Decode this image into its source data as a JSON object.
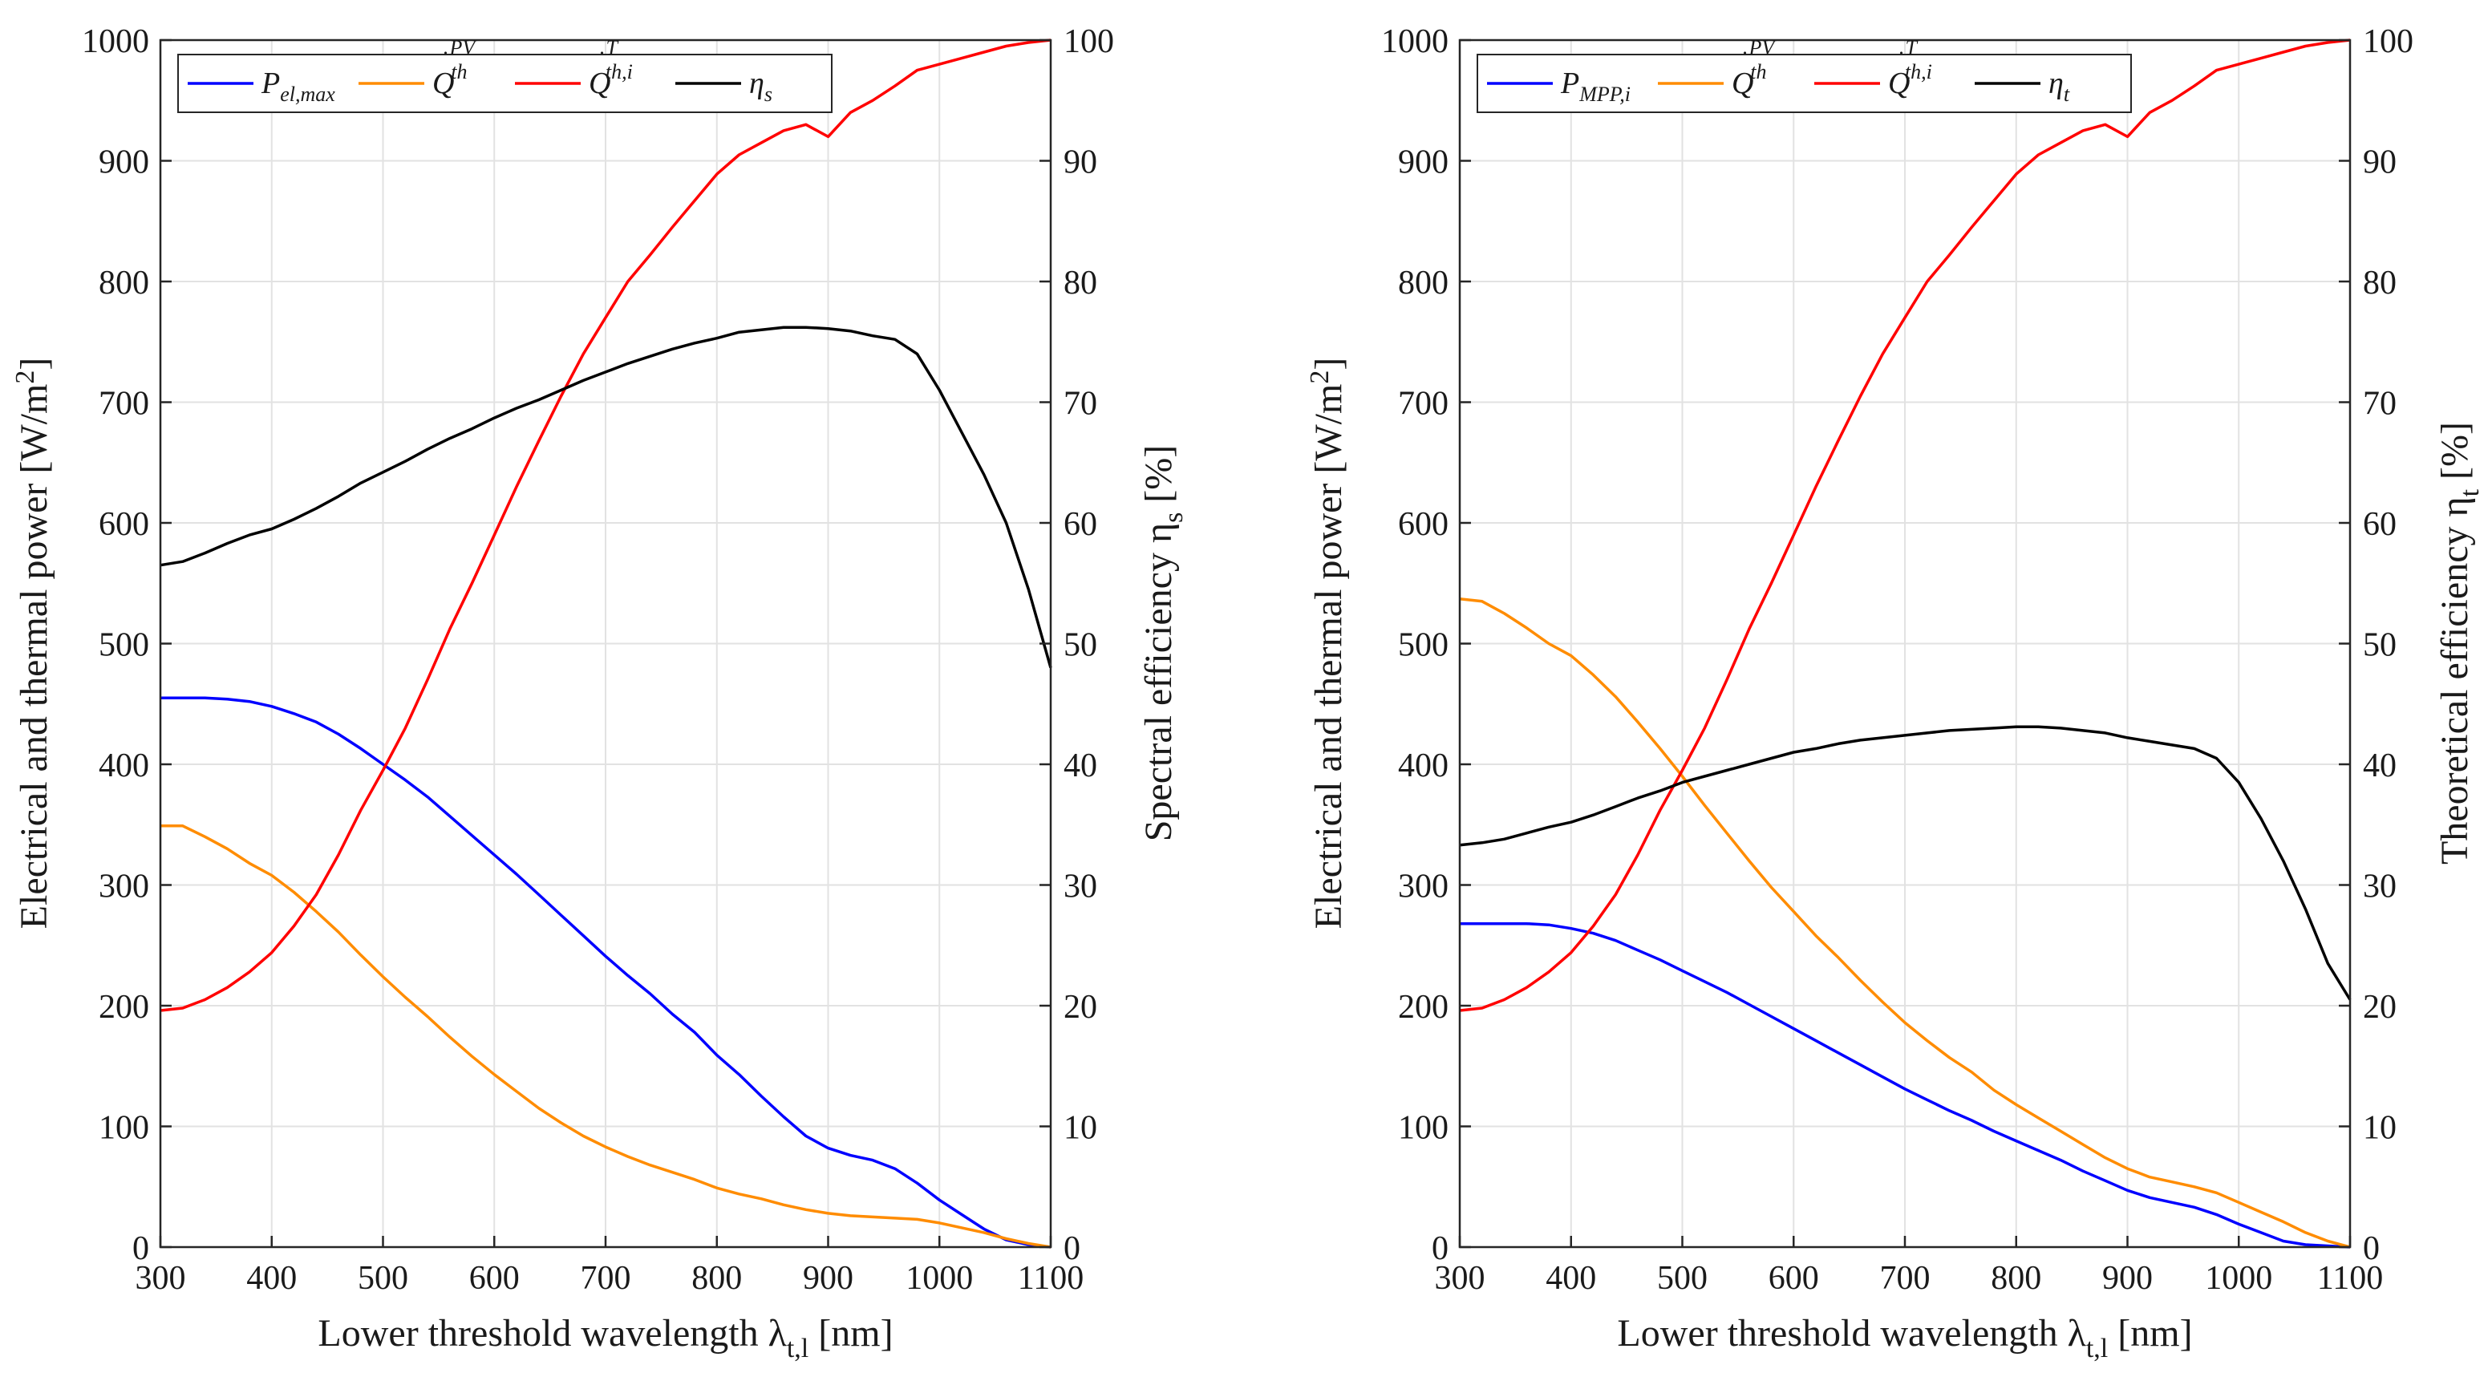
{
  "chart_data": [
    {
      "type": "line",
      "x": [
        300,
        320,
        340,
        360,
        380,
        400,
        420,
        440,
        460,
        480,
        500,
        520,
        540,
        560,
        580,
        600,
        620,
        640,
        660,
        680,
        700,
        720,
        740,
        760,
        780,
        800,
        820,
        840,
        860,
        880,
        900,
        920,
        940,
        960,
        980,
        1000,
        1020,
        1040,
        1060,
        1080,
        1100
      ],
      "xlabel_text": "Lower threshold wavelength λ",
      "xlabel_sub": "t,l",
      "xlabel_unit": " [nm]",
      "ylabel_left_text": "Electrical and thermal power [W/m",
      "ylabel_left_sup": "2",
      "ylabel_left_end": "]",
      "ylabel_right_text": "Spectral efficiency η",
      "ylabel_right_sub": "s",
      "ylabel_right_unit": " [%]",
      "xlim": [
        300,
        1100
      ],
      "ylim_left": [
        0,
        1000
      ],
      "ylim_right": [
        0,
        100
      ],
      "xticks": [
        "300",
        "400",
        "500",
        "600",
        "700",
        "800",
        "900",
        "1000",
        "1100"
      ],
      "yticks_left": [
        "0",
        "100",
        "200",
        "300",
        "400",
        "500",
        "600",
        "700",
        "800",
        "900",
        "1000"
      ],
      "yticks_right": [
        "0",
        "10",
        "20",
        "30",
        "40",
        "50",
        "60",
        "70",
        "80",
        "90",
        "100"
      ],
      "grid": true,
      "legend_position": "top-left",
      "series": [
        {
          "name": "P",
          "sub": "el,max",
          "sup": "",
          "dot": false,
          "axis": "left",
          "color": "#0000ff",
          "values": [
            455,
            455,
            455,
            454,
            452,
            448,
            442,
            435,
            425,
            413,
            400,
            387,
            373,
            357,
            341,
            325,
            309,
            292,
            275,
            258,
            241,
            225,
            210,
            193,
            178,
            159,
            143,
            125,
            108,
            92,
            82,
            76,
            72,
            65,
            53,
            39,
            27,
            15,
            6,
            2,
            0
          ]
        },
        {
          "name": "Q",
          "sub": "th",
          "sup": "PV",
          "dot": true,
          "axis": "left",
          "color": "#ff8c00",
          "values": [
            349,
            349,
            340,
            330,
            318,
            308,
            294,
            278,
            261,
            242,
            224,
            207,
            191,
            174,
            158,
            143,
            129,
            115,
            103,
            92,
            83,
            75,
            68,
            62,
            56,
            49,
            44,
            40,
            35,
            31,
            28,
            26,
            25,
            24,
            23,
            20,
            16,
            12,
            7,
            3,
            0
          ]
        },
        {
          "name": "Q",
          "sub": "th,i",
          "sup": "T",
          "dot": true,
          "axis": "left",
          "color": "#ff0000",
          "values": [
            196,
            198,
            205,
            215,
            228,
            244,
            266,
            292,
            325,
            362,
            395,
            430,
            470,
            512,
            550,
            590,
            630,
            668,
            705,
            740,
            770,
            800,
            822,
            845,
            867,
            889,
            905,
            915,
            925,
            930,
            920,
            940,
            950,
            962,
            975,
            980,
            985,
            990,
            995,
            998,
            1000
          ]
        },
        {
          "name": "η",
          "sub": "s",
          "sup": "",
          "dot": false,
          "axis": "right",
          "color": "#000000",
          "values": [
            56.5,
            56.8,
            57.5,
            58.3,
            59.0,
            59.5,
            60.3,
            61.2,
            62.2,
            63.3,
            64.2,
            65.1,
            66.1,
            67.0,
            67.8,
            68.7,
            69.5,
            70.2,
            71.0,
            71.8,
            72.5,
            73.2,
            73.8,
            74.4,
            74.9,
            75.3,
            75.8,
            76.0,
            76.2,
            76.2,
            76.1,
            75.9,
            75.5,
            75.2,
            74.0,
            71.0,
            67.5,
            64.0,
            60.0,
            54.5,
            48.0
          ]
        }
      ]
    },
    {
      "type": "line",
      "x": [
        300,
        320,
        340,
        360,
        380,
        400,
        420,
        440,
        460,
        480,
        500,
        520,
        540,
        560,
        580,
        600,
        620,
        640,
        660,
        680,
        700,
        720,
        740,
        760,
        780,
        800,
        820,
        840,
        860,
        880,
        900,
        920,
        940,
        960,
        980,
        1000,
        1020,
        1040,
        1060,
        1080,
        1100
      ],
      "xlabel_text": "Lower threshold wavelength λ",
      "xlabel_sub": "t,l",
      "xlabel_unit": " [nm]",
      "ylabel_left_text": "Electrical and thermal power [W/m",
      "ylabel_left_sup": "2",
      "ylabel_left_end": "]",
      "ylabel_right_text": "Theoretical efficiency η",
      "ylabel_right_sub": "t",
      "ylabel_right_unit": " [%]",
      "xlim": [
        300,
        1100
      ],
      "ylim_left": [
        0,
        1000
      ],
      "ylim_right": [
        0,
        100
      ],
      "xticks": [
        "300",
        "400",
        "500",
        "600",
        "700",
        "800",
        "900",
        "1000",
        "1100"
      ],
      "yticks_left": [
        "0",
        "100",
        "200",
        "300",
        "400",
        "500",
        "600",
        "700",
        "800",
        "900",
        "1000"
      ],
      "yticks_right": [
        "0",
        "10",
        "20",
        "30",
        "40",
        "50",
        "60",
        "70",
        "80",
        "90",
        "100"
      ],
      "grid": true,
      "legend_position": "top-left",
      "series": [
        {
          "name": "P",
          "sub": "MPP,i",
          "sup": "",
          "dot": false,
          "axis": "left",
          "color": "#0000ff",
          "values": [
            268,
            268,
            268,
            268,
            267,
            264,
            260,
            254,
            246,
            238,
            229,
            220,
            211,
            201,
            191,
            181,
            171,
            161,
            151,
            141,
            131,
            122,
            113,
            105,
            96,
            88,
            80,
            72,
            63,
            55,
            47,
            41,
            37,
            33,
            27,
            19,
            12,
            5,
            2,
            1,
            0
          ]
        },
        {
          "name": "Q",
          "sub": "th",
          "sup": "PV",
          "dot": true,
          "axis": "left",
          "color": "#ff8c00",
          "values": [
            537,
            535,
            525,
            513,
            500,
            490,
            474,
            456,
            435,
            413,
            390,
            366,
            343,
            320,
            298,
            278,
            258,
            240,
            221,
            203,
            186,
            171,
            157,
            145,
            130,
            118,
            107,
            96,
            85,
            74,
            65,
            58,
            54,
            50,
            45,
            37,
            29,
            21,
            12,
            5,
            0
          ]
        },
        {
          "name": "Q",
          "sub": "th,i",
          "sup": "T",
          "dot": true,
          "axis": "left",
          "color": "#ff0000",
          "values": [
            196,
            198,
            205,
            215,
            228,
            244,
            266,
            292,
            325,
            362,
            395,
            430,
            470,
            512,
            550,
            590,
            630,
            668,
            705,
            740,
            770,
            800,
            822,
            845,
            867,
            889,
            905,
            915,
            925,
            930,
            920,
            940,
            950,
            962,
            975,
            980,
            985,
            990,
            995,
            998,
            1000
          ]
        },
        {
          "name": "η",
          "sub": "t",
          "sup": "",
          "dot": false,
          "axis": "right",
          "color": "#000000",
          "values": [
            33.3,
            33.5,
            33.8,
            34.3,
            34.8,
            35.2,
            35.8,
            36.5,
            37.2,
            37.8,
            38.5,
            39.0,
            39.5,
            40.0,
            40.5,
            41.0,
            41.3,
            41.7,
            42.0,
            42.2,
            42.4,
            42.6,
            42.8,
            42.9,
            43.0,
            43.1,
            43.1,
            43.0,
            42.8,
            42.6,
            42.2,
            41.9,
            41.6,
            41.3,
            40.5,
            38.5,
            35.5,
            32.0,
            28.0,
            23.5,
            20.5
          ]
        }
      ]
    }
  ]
}
